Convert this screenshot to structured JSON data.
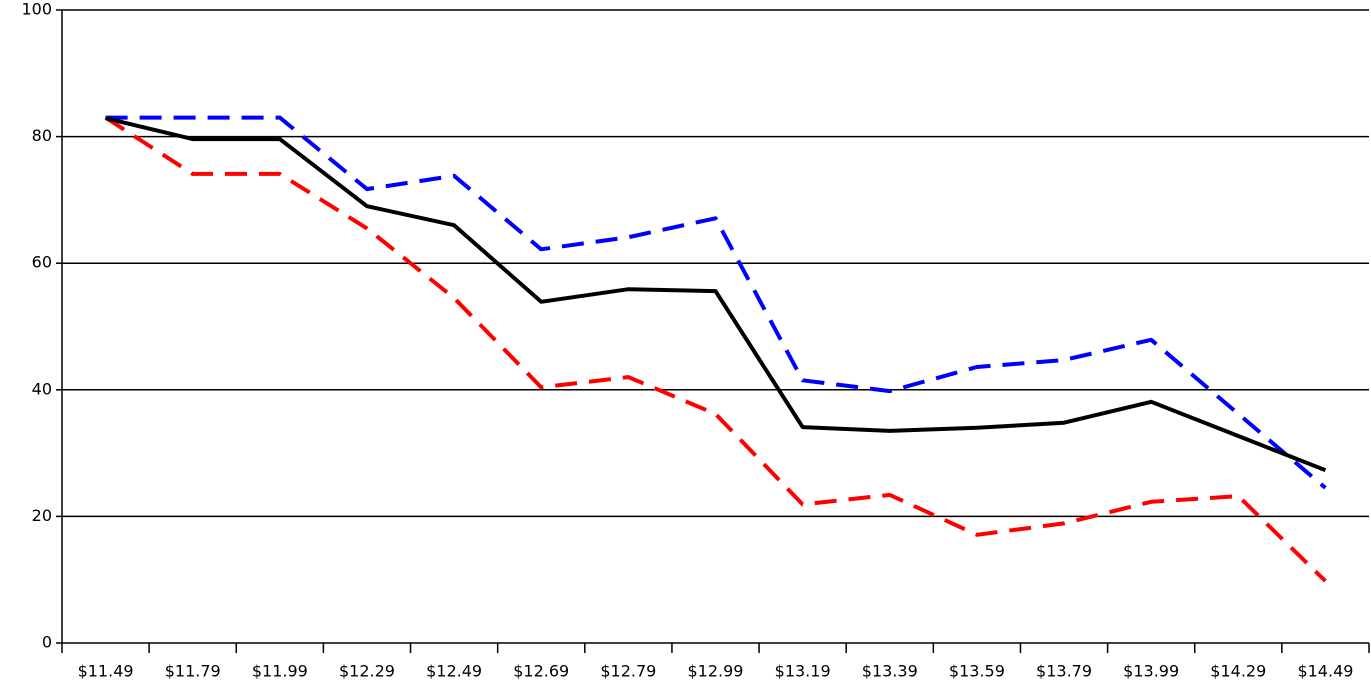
{
  "chart_data": {
    "type": "line",
    "categories": [
      "$11.49",
      "$11.79",
      "$11.99",
      "$12.29",
      "$12.49",
      "$12.69",
      "$12.79",
      "$12.99",
      "$13.19",
      "$13.39",
      "$13.59",
      "$13.79",
      "$13.99",
      "$14.29",
      "$14.49"
    ],
    "series": [
      {
        "color": "#0000ff",
        "dash": true,
        "values": [
          83,
          83,
          83,
          71.7,
          73.8,
          62.2,
          64.1,
          67.1,
          41.5,
          39.8,
          43.6,
          44.7,
          47.9,
          36.2,
          24.5
        ]
      },
      {
        "color": "#ff0000",
        "dash": true,
        "values": [
          83,
          74.1,
          74.1,
          65.5,
          54.5,
          40.4,
          42,
          36.2,
          21.9,
          23.4,
          17.1,
          18.9,
          22.3,
          23.2,
          9.8
        ]
      },
      {
        "color": "#000000",
        "dash": false,
        "values": [
          82.9,
          79.6,
          79.6,
          69,
          66,
          53.9,
          55.9,
          55.6,
          34.1,
          33.5,
          34,
          34.8,
          38.1,
          32.7,
          27.3
        ]
      }
    ],
    "ylim": [
      0,
      100
    ],
    "yticks": [
      0,
      20,
      40,
      60,
      80,
      100
    ],
    "grid": true
  }
}
